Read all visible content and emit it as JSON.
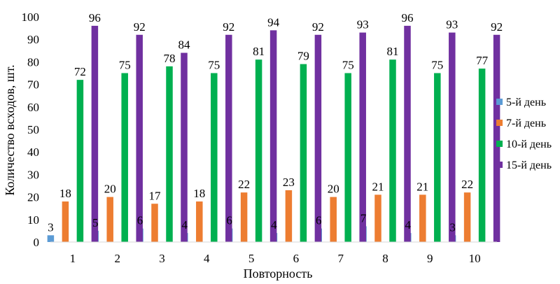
{
  "chart_data": {
    "type": "bar",
    "title": "",
    "xlabel": "Повторность",
    "ylabel": "Количество всходов, шт.",
    "ylim": [
      0,
      100
    ],
    "yticks": [
      0,
      10,
      20,
      30,
      40,
      50,
      60,
      70,
      80,
      90,
      100
    ],
    "grid": false,
    "legend_position": "right",
    "categories": [
      "1",
      "2",
      "3",
      "4",
      "5",
      "6",
      "7",
      "8",
      "9",
      "10"
    ],
    "series": [
      {
        "name": "5-й день",
        "color": "#5b9bd5",
        "values": [
          3,
          5,
          6,
          4,
          6,
          4,
          6,
          7,
          4,
          3
        ]
      },
      {
        "name": "7-й день",
        "color": "#ed7d31",
        "values": [
          18,
          20,
          17,
          18,
          22,
          23,
          20,
          21,
          21,
          22
        ]
      },
      {
        "name": "10-й день",
        "color": "#00b050",
        "values": [
          72,
          75,
          78,
          75,
          81,
          79,
          75,
          81,
          75,
          77
        ]
      },
      {
        "name": "15-й день",
        "color": "#7030a0",
        "values": [
          96,
          92,
          84,
          92,
          94,
          92,
          93,
          96,
          93,
          92
        ]
      }
    ]
  }
}
